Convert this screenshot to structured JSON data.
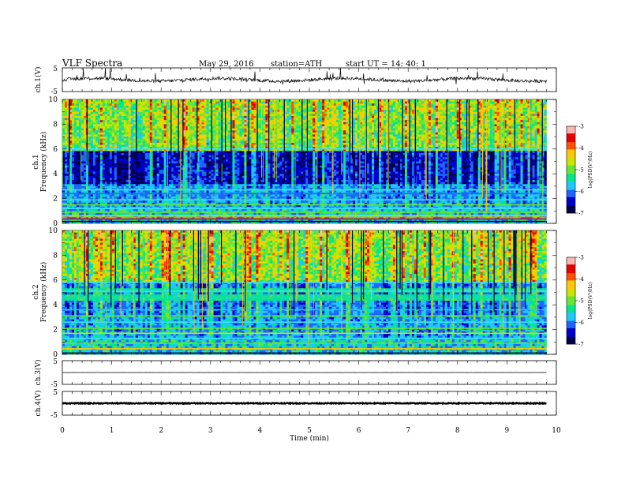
{
  "header": {
    "title": "VLF Spectra",
    "date": "May 29, 2016",
    "station": "station=ATH",
    "start": "start  UT  =   14: 40: 1"
  },
  "chart_data": [
    {
      "type": "line",
      "name": "ch1-waveform",
      "ylabel": "ch.1(V)",
      "xlim": [
        0,
        10
      ],
      "ylim": [
        -5,
        5
      ],
      "yticks": [
        "5",
        "-5"
      ],
      "baseline": 0,
      "trace_end_min": 9.8
    },
    {
      "type": "heatmap",
      "name": "ch1-spectrogram",
      "ylabel": [
        "ch.1",
        "Frequency  (kHz)"
      ],
      "ylim": [
        0,
        10
      ],
      "yticks": [
        "0",
        "2",
        "4",
        "6",
        "8",
        "10"
      ],
      "xlim": [
        0,
        10
      ],
      "data_end_min": 9.8,
      "colorbar": {
        "label": "log(PSD(V²/Hz)",
        "range": [
          -7,
          -3
        ],
        "ticks": [
          "-3",
          "-4",
          "-5",
          "-6",
          "-7"
        ]
      }
    },
    {
      "type": "heatmap",
      "name": "ch2-spectrogram",
      "ylabel": [
        "ch.2",
        "Frequency  (kHz)"
      ],
      "ylim": [
        0,
        10
      ],
      "yticks": [
        "0",
        "2",
        "4",
        "6",
        "8",
        "10"
      ],
      "xlim": [
        0,
        10
      ],
      "data_end_min": 9.8,
      "colorbar": {
        "label": "log(PSD(V²/Hz)",
        "range": [
          -7,
          -3
        ],
        "ticks": [
          "-3",
          "-4",
          "-5",
          "-6",
          "-7"
        ]
      }
    },
    {
      "type": "line",
      "name": "ch3-waveform",
      "ylabel": "ch.3(V)",
      "xlim": [
        0,
        10
      ],
      "ylim": [
        -5,
        5
      ],
      "yticks": [
        "5",
        "-5"
      ],
      "baseline": 0,
      "trace_end_min": 9.8
    },
    {
      "type": "line",
      "name": "ch4-waveform",
      "ylabel": "ch.4(V)",
      "xlim": [
        0,
        10
      ],
      "ylim": [
        -5,
        5
      ],
      "yticks": [
        "5",
        "-5"
      ],
      "baseline": 0,
      "trace_end_min": 9.8
    }
  ],
  "xaxis": {
    "label": "Time  (min)",
    "ticks": [
      "0",
      "1",
      "2",
      "3",
      "4",
      "5",
      "6",
      "7",
      "8",
      "9",
      "10"
    ]
  },
  "colormap": [
    "#00004a",
    "#0000c8",
    "#1e64ff",
    "#1ec8ff",
    "#00e68c",
    "#64e632",
    "#c8e600",
    "#ffc800",
    "#ff5000",
    "#e60000",
    "#ffb4b4",
    "#ffffff"
  ]
}
